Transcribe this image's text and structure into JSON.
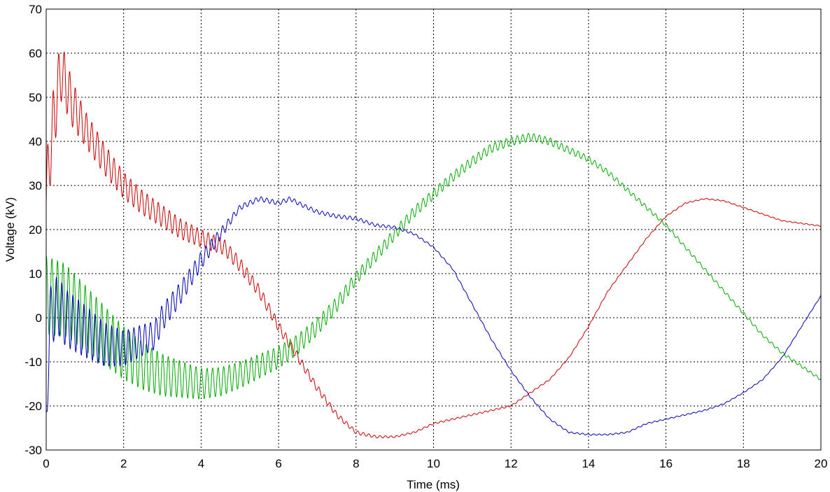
{
  "chart_data": {
    "type": "line",
    "title": "",
    "xlabel": "Time (ms)",
    "ylabel": "Voltage (kV)",
    "xlim": [
      0,
      20
    ],
    "ylim": [
      -30,
      70
    ],
    "xticks": [
      0,
      2,
      4,
      6,
      8,
      10,
      12,
      14,
      16,
      18,
      20
    ],
    "yticks": [
      -30,
      -20,
      -10,
      0,
      10,
      20,
      30,
      40,
      50,
      60,
      70
    ],
    "xtick_labels": [
      "0",
      "2",
      "4",
      "6",
      "8",
      "10",
      "12",
      "14",
      "16",
      "18",
      "20"
    ],
    "ytick_labels": [
      "-30",
      "-20",
      "-10",
      "0",
      "10",
      "20",
      "30",
      "40",
      "50",
      "60",
      "70"
    ],
    "grid": true,
    "legend": "none",
    "series": [
      {
        "color": "#cc0000",
        "osc_amplitude": [
          [
            0,
            9
          ],
          [
            0.5,
            6
          ],
          [
            1,
            4
          ],
          [
            2,
            3
          ],
          [
            4,
            2
          ],
          [
            6,
            1.2
          ],
          [
            8,
            0.4
          ],
          [
            9,
            0.2
          ],
          [
            20,
            0.1
          ]
        ],
        "osc_period_ms": 0.143,
        "x": [
          0,
          0.1,
          0.2,
          0.3,
          0.4,
          0.5,
          0.7,
          1.0,
          1.5,
          2.0,
          2.5,
          3.0,
          3.5,
          4.0,
          4.3,
          4.6,
          5.0,
          5.5,
          6.0,
          6.5,
          7.0,
          7.5,
          8.0,
          8.5,
          9.0,
          9.5,
          10.0,
          11.0,
          12.0,
          13.0,
          13.5,
          14.0,
          14.5,
          15.0,
          15.5,
          16.0,
          16.5,
          17.0,
          17.5,
          18.0,
          19.0,
          20.0
        ],
        "y": [
          26,
          38,
          45,
          52,
          56,
          53,
          48,
          43,
          36,
          30,
          26,
          23,
          20,
          18,
          17,
          16,
          12,
          6,
          -2,
          -9,
          -16,
          -22,
          -26,
          -27,
          -27,
          -26,
          -24,
          -22,
          -20,
          -14,
          -9,
          -2,
          6,
          12,
          18,
          23,
          26,
          27,
          26.5,
          25,
          22,
          20.8
        ]
      },
      {
        "color": "#00aa00",
        "osc_amplitude": [
          [
            0,
            9
          ],
          [
            2,
            6
          ],
          [
            4,
            3.5
          ],
          [
            6,
            2.5
          ],
          [
            8,
            1.5
          ],
          [
            10,
            1.2
          ],
          [
            12,
            1
          ],
          [
            14,
            0.7
          ],
          [
            16,
            0.4
          ],
          [
            20,
            0.3
          ]
        ],
        "osc_period_ms": 0.143,
        "x": [
          0,
          0.5,
          1.0,
          1.5,
          2.0,
          2.5,
          3.0,
          3.5,
          4.0,
          4.5,
          5.0,
          5.5,
          6.0,
          6.5,
          7.0,
          7.5,
          8.0,
          8.5,
          9.0,
          9.5,
          10.0,
          10.5,
          11.0,
          11.5,
          12.0,
          12.5,
          13.0,
          13.5,
          14.0,
          14.5,
          15.0,
          15.5,
          16.0,
          16.5,
          17.0,
          17.5,
          18.0,
          18.5,
          19.0,
          19.5,
          20.0
        ],
        "y": [
          5,
          4,
          0,
          -4,
          -8,
          -11,
          -13,
          -14,
          -15,
          -14.5,
          -13,
          -11,
          -9,
          -6,
          -2,
          3,
          9,
          14,
          19,
          24,
          28,
          32,
          35.5,
          38.5,
          40,
          41,
          40,
          38,
          36,
          33,
          29,
          25,
          21,
          16,
          11,
          6,
          1,
          -4,
          -8,
          -11,
          -14
        ]
      },
      {
        "color": "#0000bb",
        "osc_amplitude": [
          [
            0,
            7
          ],
          [
            1,
            6
          ],
          [
            2,
            4
          ],
          [
            3,
            3
          ],
          [
            4,
            2
          ],
          [
            5,
            0.6
          ],
          [
            6,
            0.5
          ],
          [
            8,
            0.4
          ],
          [
            10,
            0.2
          ],
          [
            20,
            0.1
          ]
        ],
        "osc_period_ms": 0.143,
        "x": [
          0,
          0.05,
          0.1,
          0.3,
          0.5,
          1.0,
          1.5,
          2.0,
          2.5,
          2.8,
          3.0,
          3.5,
          4.0,
          4.5,
          5.0,
          5.5,
          6.0,
          6.3,
          6.5,
          7.0,
          7.5,
          8.0,
          8.5,
          9.0,
          9.5,
          10.0,
          10.5,
          11.0,
          11.5,
          12.0,
          12.5,
          13.0,
          13.5,
          14.0,
          14.5,
          15.0,
          15.5,
          16.0,
          16.5,
          17.0,
          17.5,
          18.0,
          18.5,
          19.0,
          19.5,
          20.0
        ],
        "y": [
          -25,
          -10,
          0,
          3,
          0,
          -3,
          -6,
          -7,
          -5,
          -4,
          0,
          6,
          13,
          19,
          25,
          27,
          26,
          27,
          26,
          24,
          23,
          22.5,
          21,
          20.5,
          19,
          16,
          11,
          3,
          -5,
          -12,
          -18,
          -23,
          -26,
          -26.5,
          -26.5,
          -26,
          -24,
          -23,
          -22,
          -21,
          -19.5,
          -17,
          -14,
          -9,
          -2,
          5
        ]
      }
    ]
  }
}
